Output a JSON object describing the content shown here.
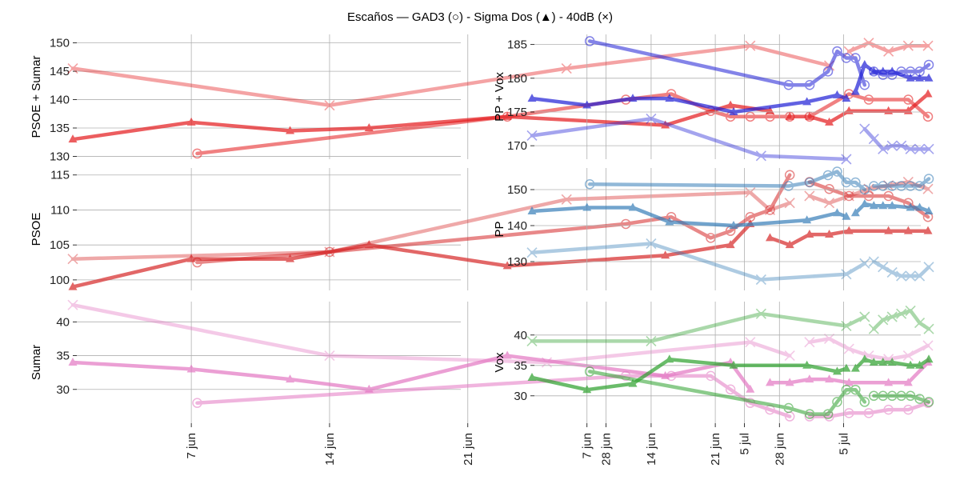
{
  "title": "Escaños — GAD3 (○) - Sigma Dos (▲) - 40dB (×)",
  "x_ticks": [
    "7 jun",
    "14 jun",
    "21 jun",
    "28 jun",
    "5 jul"
  ],
  "chart_data": [
    {
      "type": "line",
      "ylabel": "PSOE + Sumar",
      "color": "#e41a1c",
      "ylim": [
        129.5,
        151.5
      ],
      "yticks": [
        130,
        135,
        140,
        145,
        150
      ],
      "series": [
        {
          "marker": "x",
          "x": [
            0,
            13,
            25,
            34.3,
            38.3
          ],
          "y": [
            145.5,
            139,
            145.5,
            149.5,
            146
          ]
        },
        {
          "marker": "x",
          "x": [
            39.3,
            40.3,
            41.3,
            42.3,
            43.3
          ],
          "y": [
            148.5,
            150,
            148.5,
            149.5,
            149.5
          ]
        },
        {
          "marker": "tri",
          "x": [
            0,
            6,
            11,
            15,
            22,
            30,
            33.3,
            35.3
          ],
          "y": [
            133,
            136,
            134.5,
            135,
            137,
            135.5,
            139,
            138
          ]
        },
        {
          "marker": "tri",
          "x": [
            36.3,
            37.3,
            38.3,
            39.3,
            41.3,
            42.3,
            43.3
          ],
          "y": [
            137,
            137,
            136,
            138,
            138,
            138,
            141
          ]
        },
        {
          "marker": "o",
          "x": [
            6.3,
            22,
            28,
            30.3,
            32.3,
            33.3,
            34.3,
            35.3,
            36.3
          ],
          "y": [
            130.5,
            137,
            140,
            141,
            138,
            137,
            137,
            137,
            137
          ]
        },
        {
          "marker": "o",
          "x": [
            37.3,
            39.3,
            40.3,
            42.3,
            43.3
          ],
          "y": [
            137,
            141,
            140,
            140,
            137
          ]
        }
      ]
    },
    {
      "type": "line",
      "ylabel": "PSOE",
      "color": "#d62728",
      "ylim": [
        98.5,
        116
      ],
      "yticks": [
        100,
        105,
        110,
        115
      ],
      "series": [
        {
          "marker": "x",
          "x": [
            0,
            13,
            25,
            34.3,
            35.3,
            36.3
          ],
          "y": [
            103,
            104,
            111.5,
            112.5,
            110,
            111
          ]
        },
        {
          "marker": "x",
          "x": [
            37.3,
            38.3,
            39.3,
            40.3,
            41.3,
            42.3,
            43.3
          ],
          "y": [
            112,
            111,
            112,
            113,
            113.5,
            114,
            113
          ]
        },
        {
          "marker": "tri",
          "x": [
            0,
            6,
            11,
            15,
            22,
            30,
            33.3,
            34.3
          ],
          "y": [
            99,
            103,
            103,
            105,
            102,
            103.5,
            105,
            108
          ]
        },
        {
          "marker": "tri",
          "x": [
            35.3,
            36.3,
            37.3,
            38.3,
            39.3,
            41.3,
            42.3,
            43.3
          ],
          "y": [
            106,
            105,
            106.5,
            106.5,
            107,
            107,
            107,
            107
          ]
        },
        {
          "marker": "o",
          "x": [
            6.3,
            13,
            28,
            30.3,
            32.3,
            33.3,
            34.3,
            35.3,
            36.3
          ],
          "y": [
            102.5,
            104,
            108,
            109,
            106,
            107,
            109,
            110,
            115
          ]
        },
        {
          "marker": "o",
          "x": [
            37.3,
            38.3,
            39.3,
            40.3,
            41.3,
            42.3,
            43.3
          ],
          "y": [
            114,
            113,
            112,
            112,
            112,
            111,
            109
          ]
        }
      ]
    },
    {
      "type": "line",
      "ylabel": "Sumar",
      "color": "#e377c2",
      "ylim": [
        25,
        43
      ],
      "yticks": [
        30,
        35,
        40
      ],
      "series": [
        {
          "marker": "x",
          "x": [
            0,
            13,
            24,
            34.3,
            36.3
          ],
          "y": [
            42.5,
            35,
            34,
            37,
            35
          ]
        },
        {
          "marker": "x",
          "x": [
            37.3,
            38.3,
            39.3,
            40.3,
            41.3,
            42.3,
            43.3
          ],
          "y": [
            37,
            37.5,
            36,
            35,
            34.5,
            35,
            36.5
          ]
        },
        {
          "marker": "tri",
          "x": [
            0,
            6,
            11,
            15,
            22,
            30,
            33.3,
            34.3
          ],
          "y": [
            34,
            33,
            31.5,
            30,
            35,
            32,
            34,
            30
          ]
        },
        {
          "marker": "tri",
          "x": [
            35.3,
            36.3,
            37.3,
            38.3,
            39.3,
            41.3,
            42.3,
            43.3
          ],
          "y": [
            31,
            31,
            31.5,
            31.5,
            31,
            31,
            31,
            34
          ]
        },
        {
          "marker": "o",
          "x": [
            6.3,
            28,
            30.3,
            32.3,
            33.3,
            34.3,
            35.3,
            36.3
          ],
          "y": [
            28,
            32,
            32,
            32,
            30,
            28,
            27,
            26
          ]
        },
        {
          "marker": "o",
          "x": [
            37.3,
            38.3,
            39.3,
            40.3,
            41.3,
            42.3,
            43.3
          ],
          "y": [
            26,
            26,
            26.5,
            26.5,
            27,
            27,
            28
          ]
        }
      ]
    },
    {
      "type": "line",
      "ylabel": "PP + Vox",
      "color": "#1f1fd6",
      "ylim": [
        168,
        186.5
      ],
      "yticks": [
        170,
        175,
        180,
        185
      ],
      "series": [
        {
          "marker": "x",
          "x": [
            0,
            13,
            25,
            34.3
          ],
          "y": [
            171.5,
            174,
            168.5,
            168
          ]
        },
        {
          "marker": "x",
          "x": [
            36.3,
            37.3,
            38.3,
            39.3,
            40.3,
            41.3,
            42.3,
            43.3
          ],
          "y": [
            172.5,
            171,
            169.5,
            170,
            170,
            169.5,
            169.5,
            169.5
          ]
        },
        {
          "marker": "tri",
          "x": [
            0,
            6,
            11,
            15,
            22,
            30,
            33.3,
            34.3
          ],
          "y": [
            177,
            176,
            177,
            177,
            175,
            176.5,
            177.5,
            177
          ]
        },
        {
          "marker": "tri",
          "x": [
            35.3,
            36.3,
            37.3,
            38.3,
            39.3,
            41.3,
            42.3,
            43.3
          ],
          "y": [
            178,
            182,
            181,
            181,
            181,
            180,
            180,
            180
          ]
        },
        {
          "marker": "o",
          "x": [
            6.3,
            28,
            30.3,
            32.3,
            33.3,
            34.3,
            35.3,
            36.3
          ],
          "y": [
            185.5,
            179,
            179,
            181,
            184,
            183,
            183,
            179
          ]
        },
        {
          "marker": "o",
          "x": [
            37.3,
            38.3,
            39.3,
            40.3,
            41.3,
            42.3,
            43.3
          ],
          "y": [
            181,
            180.5,
            180.5,
            181,
            181,
            181,
            182
          ]
        }
      ]
    },
    {
      "type": "line",
      "ylabel": "PP",
      "color": "#377eb8",
      "ylim": [
        122,
        156
      ],
      "yticks": [
        130,
        140,
        150
      ],
      "series": [
        {
          "marker": "x",
          "x": [
            0,
            13,
            25,
            34.3,
            36.3
          ],
          "y": [
            132.5,
            135,
            125,
            126.5,
            129.5
          ]
        },
        {
          "marker": "x",
          "x": [
            37.3,
            38.3,
            39.3,
            40.3,
            41.3,
            42.3,
            43.3
          ],
          "y": [
            130,
            128.5,
            127,
            126,
            126,
            126,
            128.5
          ]
        },
        {
          "marker": "tri",
          "x": [
            0,
            6,
            11,
            15,
            22,
            30,
            33.3,
            34.3
          ],
          "y": [
            144,
            145,
            145,
            141,
            140,
            141.5,
            143.5,
            142.5
          ]
        },
        {
          "marker": "tri",
          "x": [
            35.3,
            36.3,
            37.3,
            38.3,
            39.3,
            41.3,
            42.3,
            43.3
          ],
          "y": [
            143.5,
            146,
            145.5,
            145.5,
            145.5,
            145,
            145,
            144
          ]
        },
        {
          "marker": "o",
          "x": [
            6.3,
            28,
            30.3,
            32.3,
            33.3,
            34.3,
            35.3,
            36.3
          ],
          "y": [
            151.5,
            151,
            152,
            154,
            155,
            152,
            152,
            150
          ]
        },
        {
          "marker": "o",
          "x": [
            37.3,
            38.3,
            39.3,
            40.3,
            41.3,
            42.3,
            43.3
          ],
          "y": [
            151,
            151,
            151,
            151,
            151,
            151,
            153
          ]
        }
      ]
    },
    {
      "type": "line",
      "ylabel": "Vox",
      "color": "#2ca02c",
      "ylim": [
        25.5,
        45.5
      ],
      "yticks": [
        30,
        35,
        40
      ],
      "series": [
        {
          "marker": "x",
          "x": [
            0,
            13,
            25,
            34.3,
            36.3
          ],
          "y": [
            39,
            39,
            43.5,
            41.5,
            43
          ]
        },
        {
          "marker": "x",
          "x": [
            37.3,
            38.3,
            39.3,
            40.3,
            41.3,
            42.3,
            43.3
          ],
          "y": [
            41,
            42.5,
            43,
            43.5,
            44,
            42,
            41
          ]
        },
        {
          "marker": "tri",
          "x": [
            0,
            6,
            11,
            15,
            22,
            30,
            33.3,
            34.3
          ],
          "y": [
            33,
            31,
            32,
            36,
            35,
            35,
            34,
            34.5
          ]
        },
        {
          "marker": "tri",
          "x": [
            35.3,
            36.3,
            37.3,
            38.3,
            39.3,
            41.3,
            42.3,
            43.3
          ],
          "y": [
            34.5,
            36,
            35.5,
            35.5,
            35.5,
            35,
            35,
            36
          ]
        },
        {
          "marker": "o",
          "x": [
            6.3,
            28,
            30.3,
            32.3,
            33.3,
            34.3,
            35.3,
            36.3
          ],
          "y": [
            34,
            28,
            27,
            27,
            29,
            31,
            31,
            29
          ]
        },
        {
          "marker": "o",
          "x": [
            37.3,
            38.3,
            39.3,
            40.3,
            41.3,
            42.3,
            43.3
          ],
          "y": [
            30,
            30,
            30,
            30,
            30,
            29.5,
            29
          ]
        }
      ]
    }
  ]
}
